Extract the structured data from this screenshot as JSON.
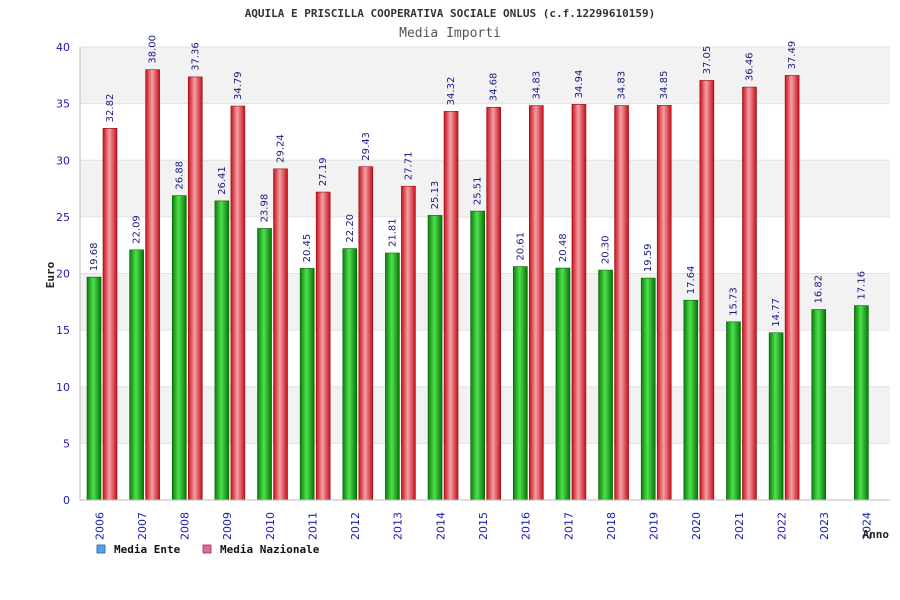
{
  "chart_data": {
    "type": "bar",
    "title": "AQUILA E PRISCILLA COOPERATIVA SOCIALE ONLUS (c.f.12299610159)",
    "subtitle": "Media Importi",
    "xlabel": "Anno",
    "ylabel": "Euro",
    "ylim": [
      0,
      40
    ],
    "yticks": [
      "0",
      "5",
      "10",
      "15",
      "20",
      "25",
      "30",
      "35",
      "40"
    ],
    "grid": true,
    "legend_position": "bottom-left",
    "categories": [
      "2006",
      "2007",
      "2008",
      "2009",
      "2010",
      "2011",
      "2012",
      "2013",
      "2014",
      "2015",
      "2016",
      "2017",
      "2018",
      "2019",
      "2020",
      "2021",
      "2022",
      "2023",
      "2024"
    ],
    "series": [
      {
        "name": "Media Ente",
        "color": "#0a9b0a",
        "legend_color": "#5aa0e8",
        "values": [
          19.68,
          22.09,
          26.88,
          26.41,
          23.98,
          20.45,
          22.2,
          21.81,
          25.13,
          25.51,
          20.61,
          20.48,
          20.3,
          19.59,
          17.64,
          15.73,
          14.77,
          16.82,
          17.16
        ],
        "labels": [
          "19.68",
          "22.09",
          "26.88",
          "26.41",
          "23.98",
          "20.45",
          "22.20",
          "21.81",
          "25.13",
          "25.51",
          "20.61",
          "20.48",
          "20.30",
          "19.59",
          "17.64",
          "15.73",
          "14.77",
          "16.82",
          "17.16"
        ]
      },
      {
        "name": "Media Nazionale",
        "color": "#e0202a",
        "legend_color": "#e06aa0",
        "values": [
          32.82,
          38.0,
          37.36,
          34.79,
          29.24,
          27.19,
          29.43,
          27.71,
          34.32,
          34.68,
          34.83,
          34.94,
          34.83,
          34.85,
          37.05,
          36.46,
          37.49,
          null,
          null
        ],
        "labels": [
          "32.82",
          "38.00",
          "37.36",
          "34.79",
          "29.24",
          "27.19",
          "29.43",
          "27.71",
          "34.32",
          "34.68",
          "34.83",
          "34.94",
          "34.83",
          "34.85",
          "37.05",
          "36.46",
          "37.49",
          "",
          ""
        ]
      }
    ]
  }
}
